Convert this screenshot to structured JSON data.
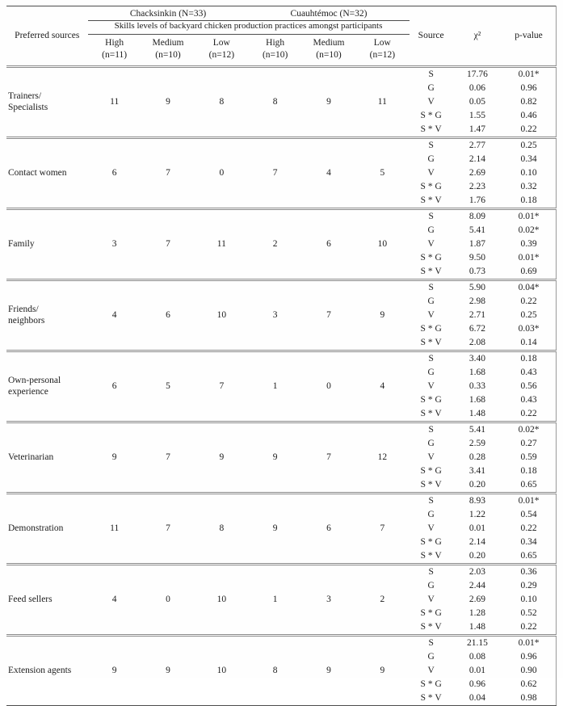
{
  "table": {
    "row_header": "Preferred sources",
    "groups": [
      {
        "label": "Chacksinkin (N=33)"
      },
      {
        "label": "Cuauhtémoc (N=32)"
      }
    ],
    "subtitle": "Skills levels of backyard chicken production practices amongst participants",
    "sub_headers": [
      {
        "level": "High",
        "n": "(n=11)"
      },
      {
        "level": "Medium",
        "n": "(n=10)"
      },
      {
        "level": "Low",
        "n": "(n=12)"
      },
      {
        "level": "High",
        "n": "(n=10)"
      },
      {
        "level": "Medium",
        "n": "(n=10)"
      },
      {
        "level": "Low",
        "n": "(n=12)"
      }
    ],
    "stat_headers": [
      "Source",
      "χ²",
      "p-value"
    ],
    "rows": [
      {
        "source": "Trainers/\nSpecialists",
        "counts": [
          11,
          9,
          8,
          8,
          9,
          11
        ],
        "stats": [
          {
            "source": "S",
            "chi2": "17.76",
            "p": "0.01*"
          },
          {
            "source": "G",
            "chi2": "0.06",
            "p": "0.96"
          },
          {
            "source": "V",
            "chi2": "0.05",
            "p": "0.82"
          },
          {
            "source": "S * G",
            "chi2": "1.55",
            "p": "0.46"
          },
          {
            "source": "S * V",
            "chi2": "1.47",
            "p": "0.22"
          }
        ]
      },
      {
        "source": "Contact women",
        "counts": [
          6,
          7,
          0,
          7,
          4,
          5
        ],
        "stats": [
          {
            "source": "S",
            "chi2": "2.77",
            "p": "0.25"
          },
          {
            "source": "G",
            "chi2": "2.14",
            "p": "0.34"
          },
          {
            "source": "V",
            "chi2": "2.69",
            "p": "0.10"
          },
          {
            "source": "S * G",
            "chi2": "2.23",
            "p": "0.32"
          },
          {
            "source": "S * V",
            "chi2": "1.76",
            "p": "0.18"
          }
        ]
      },
      {
        "source": "Family",
        "counts": [
          3,
          7,
          11,
          2,
          6,
          10
        ],
        "stats": [
          {
            "source": "S",
            "chi2": "8.09",
            "p": "0.01*"
          },
          {
            "source": "G",
            "chi2": "5.41",
            "p": "0.02*"
          },
          {
            "source": "V",
            "chi2": "1.87",
            "p": "0.39"
          },
          {
            "source": "S * G",
            "chi2": "9.50",
            "p": "0.01*"
          },
          {
            "source": "S * V",
            "chi2": "0.73",
            "p": "0.69"
          }
        ]
      },
      {
        "source": "Friends/\nneighbors",
        "counts": [
          4,
          6,
          10,
          3,
          7,
          9
        ],
        "stats": [
          {
            "source": "S",
            "chi2": "5.90",
            "p": "0.04*"
          },
          {
            "source": "G",
            "chi2": "2.98",
            "p": "0.22"
          },
          {
            "source": "V",
            "chi2": "2.71",
            "p": "0.25"
          },
          {
            "source": "S * G",
            "chi2": "6.72",
            "p": "0.03*"
          },
          {
            "source": "S * V",
            "chi2": "2.08",
            "p": "0.14"
          }
        ]
      },
      {
        "source": "Own-personal\nexperience",
        "counts": [
          6,
          5,
          7,
          1,
          0,
          4
        ],
        "stats": [
          {
            "source": "S",
            "chi2": "3.40",
            "p": "0.18"
          },
          {
            "source": "G",
            "chi2": "1.68",
            "p": "0.43"
          },
          {
            "source": "V",
            "chi2": "0.33",
            "p": "0.56"
          },
          {
            "source": "S * G",
            "chi2": "1.68",
            "p": "0.43"
          },
          {
            "source": "S * V",
            "chi2": "1.48",
            "p": "0.22"
          }
        ]
      },
      {
        "source": "Veterinarian",
        "counts": [
          9,
          7,
          9,
          9,
          7,
          12
        ],
        "stats": [
          {
            "source": "S",
            "chi2": "5.41",
            "p": "0.02*"
          },
          {
            "source": "G",
            "chi2": "2.59",
            "p": "0.27"
          },
          {
            "source": "V",
            "chi2": "0.28",
            "p": "0.59"
          },
          {
            "source": "S * G",
            "chi2": "3.41",
            "p": "0.18"
          },
          {
            "source": "S * V",
            "chi2": "0.20",
            "p": "0.65"
          }
        ]
      },
      {
        "source": "Demonstration",
        "counts": [
          11,
          7,
          8,
          9,
          6,
          7
        ],
        "stats": [
          {
            "source": "S",
            "chi2": "8.93",
            "p": "0.01*"
          },
          {
            "source": "G",
            "chi2": "1.22",
            "p": "0.54"
          },
          {
            "source": "V",
            "chi2": "0.01",
            "p": "0.22"
          },
          {
            "source": "S * G",
            "chi2": "2.14",
            "p": "0.34"
          },
          {
            "source": "S * V",
            "chi2": "0.20",
            "p": "0.65"
          }
        ]
      },
      {
        "source": "Feed sellers",
        "counts": [
          4,
          0,
          10,
          1,
          3,
          2
        ],
        "stats": [
          {
            "source": "S",
            "chi2": "2.03",
            "p": "0.36"
          },
          {
            "source": "G",
            "chi2": "2.44",
            "p": "0.29"
          },
          {
            "source": "V",
            "chi2": "2.69",
            "p": "0.10"
          },
          {
            "source": "S * G",
            "chi2": "1.28",
            "p": "0.52"
          },
          {
            "source": "S * V",
            "chi2": "1.48",
            "p": "0.22"
          }
        ]
      },
      {
        "source": "Extension agents",
        "counts": [
          9,
          9,
          10,
          8,
          9,
          9
        ],
        "stats": [
          {
            "source": "S",
            "chi2": "21.15",
            "p": "0.01*"
          },
          {
            "source": "G",
            "chi2": "0.08",
            "p": "0.96"
          },
          {
            "source": "V",
            "chi2": "0.01",
            "p": "0.90"
          },
          {
            "source": "S * G",
            "chi2": "0.96",
            "p": "0.62"
          },
          {
            "source": "S * V",
            "chi2": "0.04",
            "p": "0.98"
          }
        ]
      }
    ]
  }
}
